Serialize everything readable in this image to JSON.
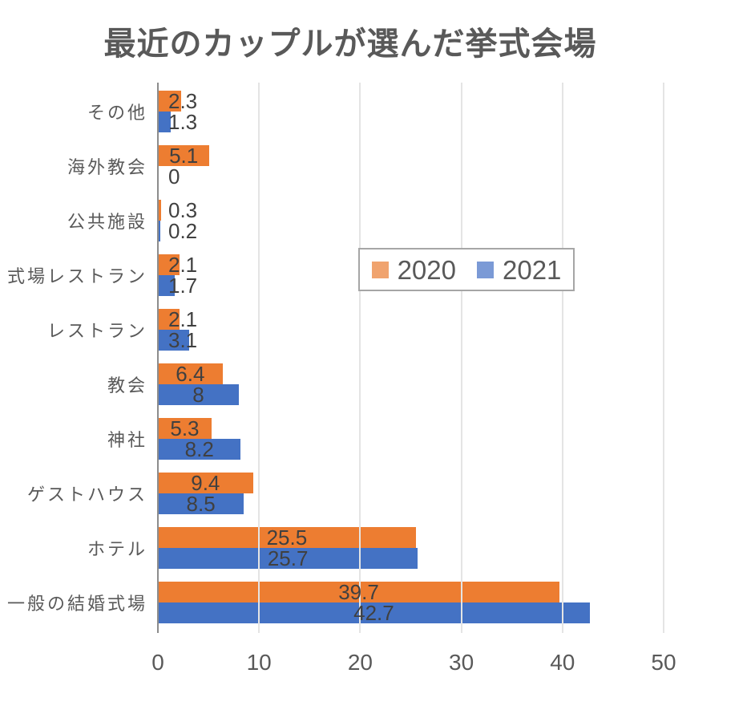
{
  "title": "最近のカップルが選んだ挙式会場",
  "chart_data": {
    "type": "bar",
    "orientation": "horizontal",
    "title": "最近のカップルが選んだ挙式会場",
    "categories_top_to_bottom": [
      "その他",
      "海外教会",
      "公共施設",
      "式場レストラン",
      "レストラン",
      "教会",
      "神社",
      "ゲストハウス",
      "ホテル",
      "一般の結婚式場"
    ],
    "series": [
      {
        "name": "2020",
        "color": "#ED7D31",
        "legend_color": "#F0A36E",
        "values": [
          2.3,
          5.1,
          0.3,
          2.1,
          2.1,
          6.4,
          5.3,
          9.4,
          25.5,
          39.7
        ]
      },
      {
        "name": "2021",
        "color": "#4472C4",
        "legend_color": "#7B9AD6",
        "values": [
          1.3,
          0,
          0.2,
          1.7,
          3.1,
          8,
          8.2,
          8.5,
          25.7,
          42.7
        ]
      }
    ],
    "x_ticks": [
      0,
      10,
      20,
      30,
      40,
      50
    ],
    "xlim": [
      0,
      56.3
    ],
    "grid": true,
    "gridlines_drawn_over_bars": true,
    "legend_position": "overlay-center",
    "data_labels": "shown, inside-center (overflow right for small bars)",
    "xlabel": "",
    "ylabel": ""
  },
  "colors": {
    "background": "#FFFFFF",
    "title_text": "#595959",
    "axis_line": "#8C8C8C",
    "gridline": "#E4E4E4",
    "tick_text": "#595959",
    "category_text": "#595959",
    "value_label_text": "#404040",
    "legend_border": "#A6A6A6",
    "legend_text": "#595959"
  }
}
